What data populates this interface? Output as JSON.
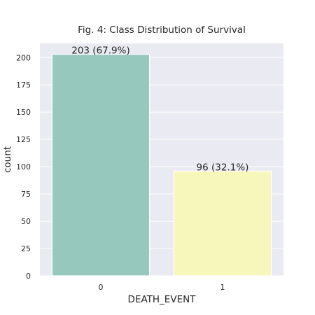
{
  "chart_data": {
    "type": "bar",
    "title": "Fig. 4: Class Distribution of Survival",
    "xlabel": "DEATH_EVENT",
    "ylabel": "count",
    "categories": [
      "0",
      "1"
    ],
    "values": [
      203,
      96
    ],
    "bar_labels": [
      "203 (67.9%)",
      "96 (32.1%)"
    ],
    "colors": [
      "#96c8be",
      "#f7f7bb"
    ],
    "ylim": [
      0,
      213
    ],
    "yticks": [
      0,
      25,
      50,
      75,
      100,
      125,
      150,
      175,
      200
    ],
    "grid": true,
    "background": "#eaeaf2",
    "legend": "none"
  }
}
